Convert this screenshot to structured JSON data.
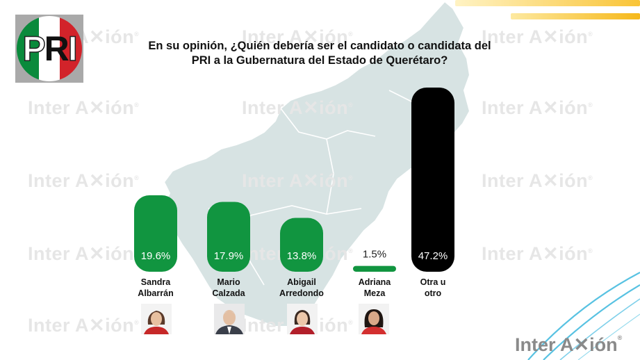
{
  "watermark": "Inter A✕ión",
  "watermark_mark": "®",
  "logo": {
    "letters": [
      "P",
      "R",
      "I"
    ]
  },
  "title": {
    "line1": "En su opinión, ¿Quién debería ser el candidato o candidata del",
    "line2": "PRI a la Gubernatura del Estado de Querétaro?"
  },
  "brand": {
    "text": "Inter A✕ión",
    "mark": "®"
  },
  "colors": {
    "green": "#119540",
    "black": "#000000",
    "map": "#d7e3e3",
    "stripe": "#f9c437",
    "swoosh": "#58c2e2"
  },
  "chart_data": {
    "type": "bar",
    "title": "En su opinión, ¿Quién debería ser el candidato o candidata del PRI a la Gubernatura del Estado de Querétaro?",
    "categories": [
      [
        "Sandra",
        "Albarrán"
      ],
      [
        "Mario",
        "Calzada"
      ],
      [
        "Abigail",
        "Arredondo"
      ],
      [
        "Adriana",
        "Meza"
      ],
      [
        "Otra u",
        "otro"
      ]
    ],
    "values": [
      19.6,
      17.9,
      13.8,
      1.5,
      47.2
    ],
    "labels": [
      "19.6%",
      "17.9%",
      "13.8%",
      "1.5%",
      "47.2%"
    ],
    "bar_colors": [
      "#119540",
      "#119540",
      "#119540",
      "#119540",
      "#000000"
    ],
    "unit": "%",
    "ylim": [
      0,
      47.2
    ],
    "grid": false,
    "legend": "none"
  }
}
